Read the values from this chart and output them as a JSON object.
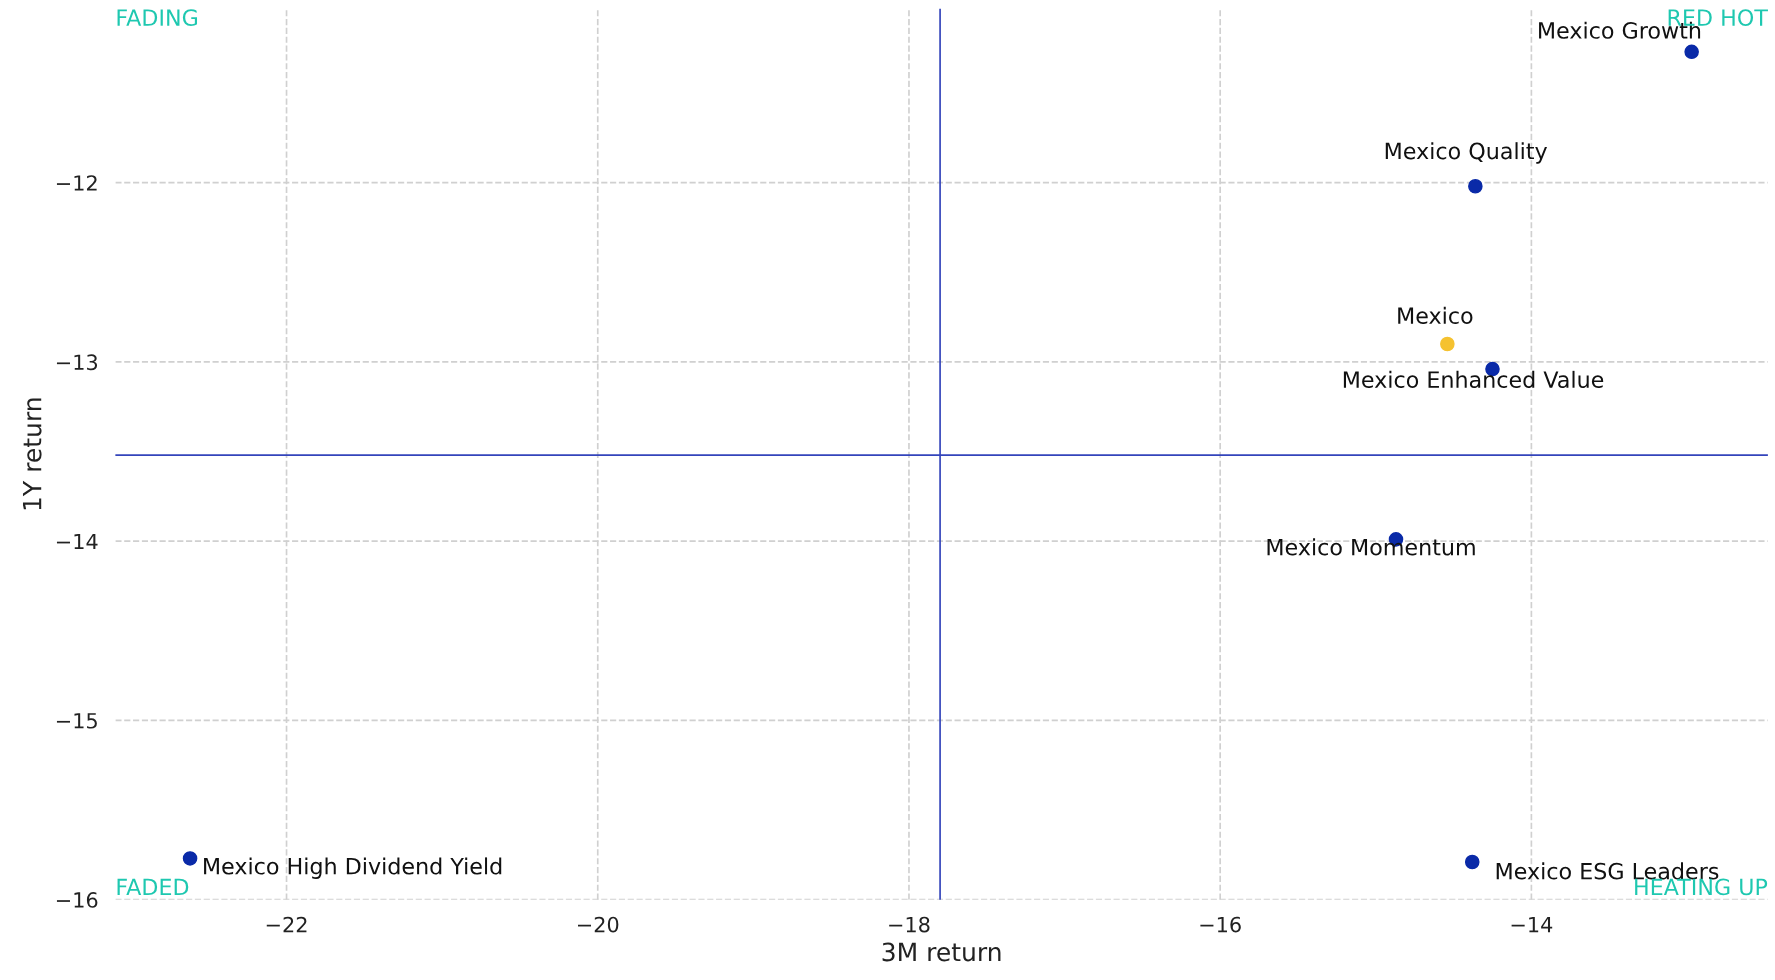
{
  "chart_data": {
    "type": "scatter",
    "xlabel": "3M return",
    "ylabel": "1Y return",
    "x": [
      -12.97,
      -14.36,
      -14.54,
      -14.25,
      -14.87,
      -14.38,
      -22.62
    ],
    "values": [
      -11.27,
      -12.02,
      -12.9,
      -13.04,
      -13.99,
      -15.79,
      -15.77
    ],
    "colors": [
      "#0a2aa8",
      "#0a2aa8",
      "#f5c230",
      "#0a2aa8",
      "#0a2aa8",
      "#0a2aa8",
      "#0a2aa8"
    ],
    "xlim": [
      -23.1,
      -12.48
    ],
    "ylim": [
      -16,
      -11.03
    ],
    "xticks": [
      {
        "value": -22,
        "label": "−22"
      },
      {
        "value": -20,
        "label": "−20"
      },
      {
        "value": -18,
        "label": "−18"
      },
      {
        "value": -16,
        "label": "−16"
      },
      {
        "value": -14,
        "label": "−14"
      }
    ],
    "yticks": [
      {
        "value": -12,
        "label": "−12"
      },
      {
        "value": -13,
        "label": "−13"
      },
      {
        "value": -14,
        "label": "−14"
      },
      {
        "value": -15,
        "label": "−15"
      },
      {
        "value": -16,
        "label": "−16"
      }
    ],
    "grid": true,
    "marker": "circle",
    "ref_lines": [
      {
        "axis": "x",
        "value": -17.8,
        "color": "#3344bb"
      },
      {
        "axis": "y",
        "value": -13.52,
        "color": "#3344bb"
      }
    ],
    "annotations": [
      {
        "text": "Mexico Growth",
        "x": -12.97,
        "y": -11.27
      },
      {
        "text": "Mexico Quality",
        "x": -14.36,
        "y": -12.02
      },
      {
        "text": "Mexico",
        "x": -14.54,
        "y": -12.9
      },
      {
        "text": "Mexico Enhanced Value",
        "x": -14.25,
        "y": -13.04
      },
      {
        "text": "Mexico Momentum",
        "x": -14.87,
        "y": -13.99
      },
      {
        "text": "Mexico ESG Leaders",
        "x": -14.38,
        "y": -15.79
      },
      {
        "text": "Mexico High Dividend Yield",
        "x": -22.62,
        "y": -15.77
      },
      "FADING",
      "RED HOT",
      "FADED",
      "HEATING UP"
    ]
  }
}
